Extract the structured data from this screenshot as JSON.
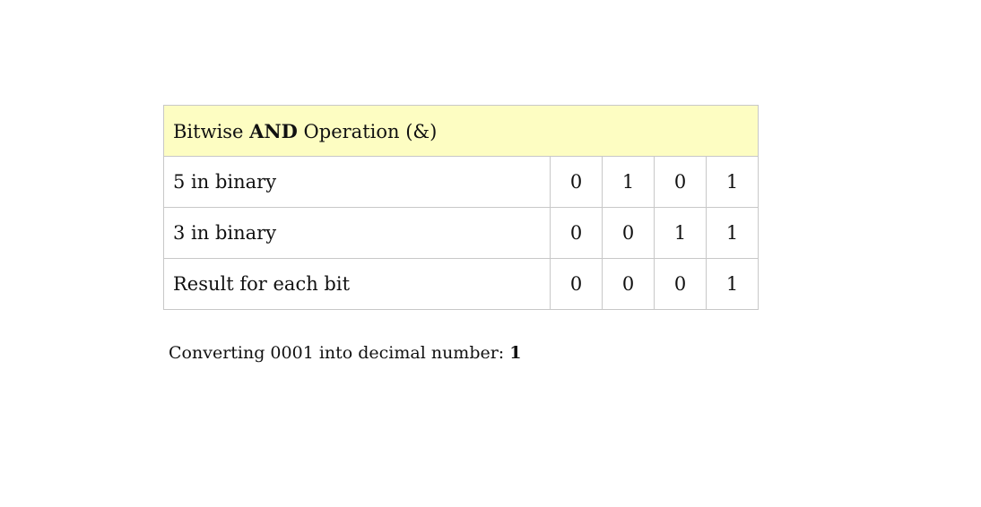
{
  "table": {
    "header": {
      "prefix": "Bitwise ",
      "bold": "AND",
      "suffix": " Operation (&)"
    },
    "rows": [
      {
        "label": "5 in binary",
        "bits": [
          "0",
          "1",
          "0",
          "1"
        ]
      },
      {
        "label": "3 in binary",
        "bits": [
          "0",
          "0",
          "1",
          "1"
        ]
      },
      {
        "label": "Result for each bit",
        "bits": [
          "0",
          "0",
          "0",
          "1"
        ]
      }
    ]
  },
  "note": {
    "text": "Converting 0001 into decimal number: ",
    "value": "1"
  },
  "colors": {
    "header_bg": "#fdfdc2",
    "border": "#c8c8c8"
  }
}
